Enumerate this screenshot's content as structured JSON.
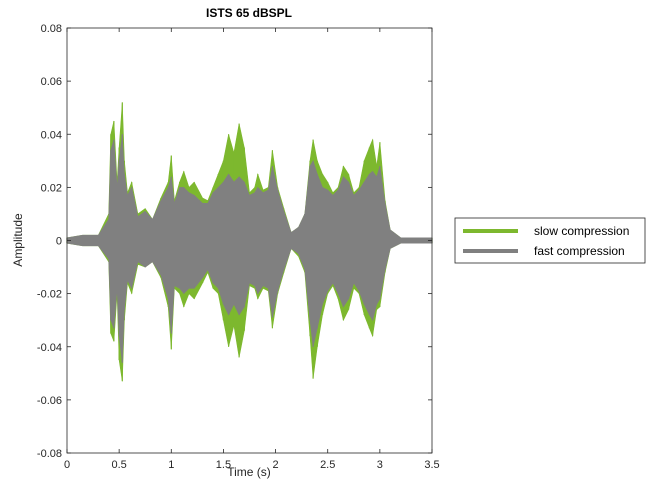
{
  "chart_data": {
    "type": "line",
    "title": "ISTS 65 dBSPL",
    "xlabel": "Time (s)",
    "ylabel": "Amplitude",
    "xlim": [
      0,
      3.5
    ],
    "ylim": [
      -0.08,
      0.08
    ],
    "xticks": [
      0,
      0.5,
      1,
      1.5,
      2,
      2.5,
      3,
      3.5
    ],
    "xtick_labels": [
      "0",
      "0.5",
      "1",
      "1.5",
      "2",
      "2.5",
      "3",
      "3.5"
    ],
    "yticks": [
      -0.08,
      -0.06,
      -0.04,
      -0.02,
      0,
      0.02,
      0.04,
      0.06,
      0.08
    ],
    "ytick_labels": [
      "-0.08",
      "-0.06",
      "-0.04",
      "-0.02",
      "0",
      "0.02",
      "0.04",
      "0.06",
      "0.08"
    ],
    "grid": false,
    "legend_position": "outside-right",
    "series": [
      {
        "name": "slow compression",
        "color": "#7db82e",
        "x": [
          0,
          0.15,
          0.3,
          0.4,
          0.42,
          0.45,
          0.48,
          0.5,
          0.53,
          0.55,
          0.58,
          0.62,
          0.68,
          0.75,
          0.82,
          0.9,
          0.97,
          1.0,
          1.03,
          1.08,
          1.12,
          1.17,
          1.22,
          1.3,
          1.35,
          1.4,
          1.45,
          1.5,
          1.55,
          1.6,
          1.65,
          1.7,
          1.75,
          1.8,
          1.83,
          1.88,
          1.93,
          1.97,
          2.02,
          2.08,
          2.15,
          2.22,
          2.28,
          2.33,
          2.36,
          2.4,
          2.45,
          2.5,
          2.55,
          2.6,
          2.65,
          2.7,
          2.75,
          2.8,
          2.85,
          2.9,
          2.93,
          2.97,
          3.0,
          3.05,
          3.1,
          3.2,
          3.35,
          3.5
        ],
        "upper": [
          0.001,
          0.002,
          0.002,
          0.01,
          0.04,
          0.045,
          0.022,
          0.035,
          0.052,
          0.03,
          0.018,
          0.022,
          0.01,
          0.012,
          0.008,
          0.016,
          0.022,
          0.032,
          0.015,
          0.022,
          0.026,
          0.02,
          0.022,
          0.016,
          0.015,
          0.02,
          0.025,
          0.03,
          0.04,
          0.033,
          0.044,
          0.035,
          0.018,
          0.02,
          0.025,
          0.019,
          0.02,
          0.034,
          0.02,
          0.012,
          0.003,
          0.005,
          0.01,
          0.03,
          0.038,
          0.03,
          0.025,
          0.022,
          0.018,
          0.02,
          0.028,
          0.025,
          0.018,
          0.02,
          0.03,
          0.035,
          0.038,
          0.028,
          0.037,
          0.015,
          0.004,
          0.001,
          0.001,
          0.001
        ],
        "lower": [
          -0.001,
          -0.002,
          -0.002,
          -0.008,
          -0.035,
          -0.038,
          -0.02,
          -0.045,
          -0.053,
          -0.03,
          -0.016,
          -0.02,
          -0.009,
          -0.01,
          -0.008,
          -0.014,
          -0.025,
          -0.041,
          -0.018,
          -0.02,
          -0.025,
          -0.02,
          -0.022,
          -0.016,
          -0.012,
          -0.018,
          -0.02,
          -0.03,
          -0.04,
          -0.032,
          -0.044,
          -0.034,
          -0.017,
          -0.018,
          -0.022,
          -0.018,
          -0.019,
          -0.033,
          -0.02,
          -0.012,
          -0.003,
          -0.006,
          -0.012,
          -0.036,
          -0.052,
          -0.04,
          -0.028,
          -0.02,
          -0.017,
          -0.022,
          -0.03,
          -0.026,
          -0.018,
          -0.02,
          -0.028,
          -0.033,
          -0.036,
          -0.026,
          -0.025,
          -0.012,
          -0.003,
          -0.001,
          -0.001,
          -0.001
        ]
      },
      {
        "name": "fast compression",
        "color": "#808080",
        "x": [
          0,
          0.15,
          0.3,
          0.4,
          0.42,
          0.45,
          0.48,
          0.5,
          0.53,
          0.55,
          0.58,
          0.62,
          0.68,
          0.75,
          0.82,
          0.9,
          0.97,
          1.0,
          1.03,
          1.08,
          1.12,
          1.17,
          1.22,
          1.3,
          1.35,
          1.4,
          1.45,
          1.5,
          1.55,
          1.6,
          1.65,
          1.7,
          1.75,
          1.8,
          1.83,
          1.88,
          1.93,
          1.97,
          2.02,
          2.08,
          2.15,
          2.22,
          2.28,
          2.33,
          2.36,
          2.4,
          2.45,
          2.5,
          2.55,
          2.6,
          2.65,
          2.7,
          2.75,
          2.8,
          2.85,
          2.9,
          2.93,
          2.97,
          3.0,
          3.05,
          3.1,
          3.2,
          3.35,
          3.5
        ],
        "upper": [
          0.001,
          0.002,
          0.002,
          0.008,
          0.034,
          0.038,
          0.02,
          0.03,
          0.04,
          0.025,
          0.017,
          0.02,
          0.009,
          0.011,
          0.008,
          0.015,
          0.02,
          0.024,
          0.014,
          0.02,
          0.02,
          0.018,
          0.017,
          0.014,
          0.014,
          0.018,
          0.02,
          0.022,
          0.025,
          0.022,
          0.024,
          0.022,
          0.017,
          0.018,
          0.02,
          0.018,
          0.019,
          0.028,
          0.019,
          0.011,
          0.003,
          0.005,
          0.01,
          0.028,
          0.03,
          0.025,
          0.02,
          0.019,
          0.017,
          0.019,
          0.024,
          0.022,
          0.017,
          0.019,
          0.022,
          0.025,
          0.026,
          0.024,
          0.028,
          0.014,
          0.004,
          0.001,
          0.001,
          0.001
        ],
        "lower": [
          -0.001,
          -0.002,
          -0.002,
          -0.007,
          -0.03,
          -0.033,
          -0.018,
          -0.036,
          -0.046,
          -0.026,
          -0.015,
          -0.018,
          -0.008,
          -0.01,
          -0.008,
          -0.013,
          -0.022,
          -0.035,
          -0.017,
          -0.018,
          -0.02,
          -0.018,
          -0.018,
          -0.014,
          -0.011,
          -0.016,
          -0.018,
          -0.024,
          -0.028,
          -0.024,
          -0.028,
          -0.025,
          -0.016,
          -0.017,
          -0.02,
          -0.017,
          -0.018,
          -0.029,
          -0.019,
          -0.011,
          -0.003,
          -0.005,
          -0.011,
          -0.03,
          -0.04,
          -0.033,
          -0.024,
          -0.019,
          -0.016,
          -0.02,
          -0.025,
          -0.022,
          -0.016,
          -0.019,
          -0.024,
          -0.028,
          -0.03,
          -0.024,
          -0.022,
          -0.011,
          -0.003,
          -0.001,
          -0.001,
          -0.001
        ]
      }
    ]
  }
}
